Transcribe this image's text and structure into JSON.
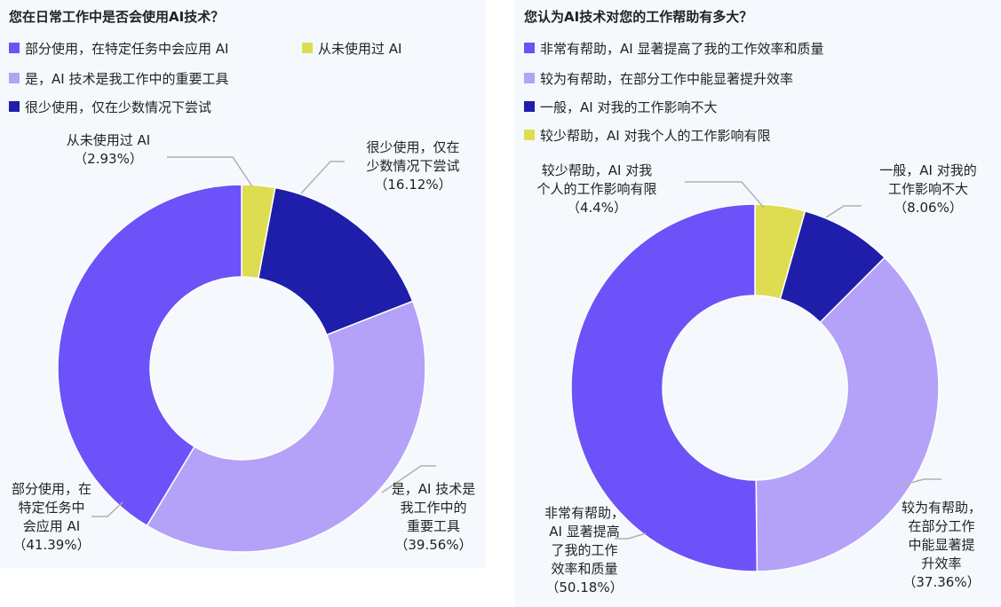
{
  "chart_data": [
    {
      "type": "pie",
      "title": "您在日常工作中是否会使用AI技术？",
      "legend": [
        {
          "label": "部分使用，在特定任务中会应用 AI",
          "color": "#6c52f8"
        },
        {
          "label": "从未使用过 AI",
          "color": "#dedd51"
        },
        {
          "label": "是，AI 技术是我工作中的重要工具",
          "color": "#b4a1f8"
        },
        {
          "label": "很少使用，仅在少数情况下尝试",
          "color": "#1e1eab"
        }
      ],
      "slices": [
        {
          "name": "从未使用过 AI",
          "value": 2.93,
          "color": "#dedd51",
          "label_lines": [
            "从未使用过 AI",
            "（2.93%）"
          ]
        },
        {
          "name": "很少使用，仅在少数情况下尝试",
          "value": 16.12,
          "color": "#1e1eab",
          "label_lines": [
            "很少使用，仅在",
            "少数情况下尝试",
            "（16.12%）"
          ]
        },
        {
          "name": "是，AI 技术是我工作中的重要工具",
          "value": 39.56,
          "color": "#b4a1f8",
          "label_lines": [
            "是，AI 技术是",
            "我工作中的",
            "重要工具",
            "（39.56%）"
          ]
        },
        {
          "name": "部分使用，在特定任务中会应用 AI",
          "value": 41.39,
          "color": "#6c52f8",
          "label_lines": [
            "部分使用，在",
            "特定任务中",
            "会应用 AI",
            "（41.39%）"
          ]
        }
      ]
    },
    {
      "type": "pie",
      "title": "您认为AI技术对您的工作帮助有多大？",
      "legend": [
        {
          "label": "非常有帮助，AI 显著提高了我的工作效率和质量",
          "color": "#6c52f8"
        },
        {
          "label": "较为有帮助，在部分工作中能显著提升效率",
          "color": "#b4a1f8"
        },
        {
          "label": "一般，AI 对我的工作影响不大",
          "color": "#1e1eab"
        },
        {
          "label": "较少帮助，AI 对我个人的工作影响有限",
          "color": "#dedd51"
        }
      ],
      "slices": [
        {
          "name": "较少帮助，AI 对我个人的工作影响有限",
          "value": 4.4,
          "color": "#dedd51",
          "label_lines": [
            "较少帮助，AI 对我",
            "个人的工作影响有限",
            "（4.4%）"
          ]
        },
        {
          "name": "一般，AI 对我的工作影响不大",
          "value": 8.06,
          "color": "#1e1eab",
          "label_lines": [
            "一般，AI 对我的",
            "工作影响不大",
            "（8.06%）"
          ]
        },
        {
          "name": "较为有帮助，在部分工作中能显著提升效率",
          "value": 37.36,
          "color": "#b4a1f8",
          "label_lines": [
            "较为有帮助，",
            "在部分工作",
            "中能显著提",
            "升效率",
            "（37.36%）"
          ]
        },
        {
          "name": "非常有帮助，AI 显著提高了我的工作效率和质量",
          "value": 50.18,
          "color": "#6c52f8",
          "label_lines": [
            "非常有帮助，",
            "AI 显著提高",
            "了我的工作",
            "效率和质量",
            "（50.18%）"
          ]
        }
      ]
    }
  ]
}
